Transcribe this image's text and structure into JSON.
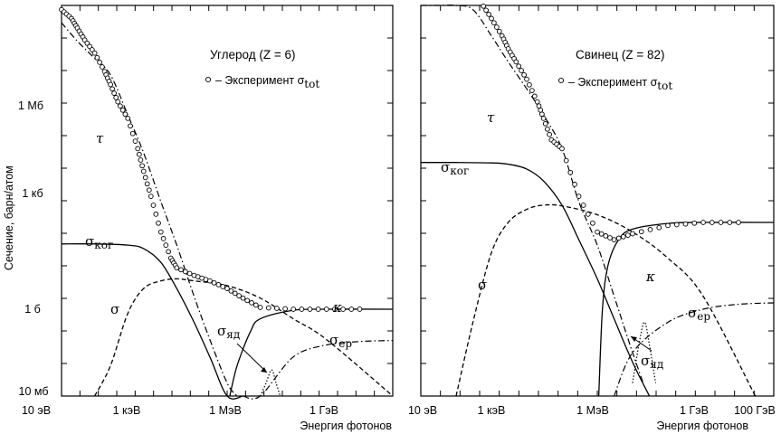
{
  "chart_data": [
    {
      "type": "line",
      "title": "Углерод (Z = 6)",
      "ylabel": "Сечение, барн/атом",
      "xlabel": "Энергия фотонов",
      "x_scale": "log",
      "y_scale": "log",
      "x_ticks": [
        "10 эВ",
        "1 кэВ",
        "1 МэВ",
        "1 ГэВ"
      ],
      "y_ticks": [
        "1 Мб",
        "1 кб",
        "1 б",
        "10 мб"
      ],
      "legend": "• – Эксперимент σ_tot",
      "labels": {
        "tau": "τ",
        "coh": "σ",
        "coh_sub": "ког",
        "incoh": "σ",
        "kappa": "κ",
        "nuc": "σ",
        "nuc_sub": "яд",
        "ep": "σ",
        "ep_sub": "ер"
      },
      "xlim_eV": [
        10,
        100000000000.0
      ],
      "ylim_barn": [
        0.01,
        10000000.0
      ],
      "series": [
        {
          "key": "tau",
          "style": "dashdot",
          "x": [
            10,
            30,
            100,
            300,
            1000,
            3000,
            10000,
            30000,
            100000.0,
            300000.0,
            1000000.0,
            2000000.0
          ],
          "y": [
            4000000.0,
            1500000.0,
            600000.0,
            250000.0,
            30000.0,
            4000,
            300,
            30,
            2,
            0.2,
            0.02,
            0.006
          ]
        },
        {
          "key": "coh",
          "style": "solid",
          "x": [
            10,
            100,
            1000,
            3000,
            10000,
            30000,
            100000.0,
            300000.0,
            1000000.0,
            3000000.0
          ],
          "y": [
            32,
            32,
            30,
            25,
            12,
            3,
            0.5,
            0.08,
            0.01,
            0.002
          ]
        },
        {
          "key": "incoh",
          "style": "dash",
          "x": [
            100,
            300,
            1000,
            3000,
            10000,
            30000,
            100000.0,
            1000000.0,
            10000000.0,
            100000000.0,
            1000000000.0,
            100000000000.0
          ],
          "y": [
            0.005,
            0.05,
            0.8,
            3,
            4.5,
            5,
            4.5,
            3.5,
            1.8,
            0.6,
            0.2,
            0.01
          ]
        },
        {
          "key": "kappa",
          "style": "solid",
          "x": [
            1200000.0,
            2000000.0,
            5000000.0,
            10000000.0,
            100000000.0,
            1000000000.0,
            100000000000.0
          ],
          "y": [
            0.01,
            0.05,
            0.3,
            0.6,
            0.95,
            1.0,
            1.0
          ]
        },
        {
          "key": "ep",
          "style": "dashdot",
          "x": [
            3000000.0,
            10000000.0,
            100000000.0,
            1000000000.0,
            10000000000.0,
            100000000000.0
          ],
          "y": [
            0.001,
            0.01,
            0.08,
            0.15,
            0.18,
            0.19
          ]
        },
        {
          "key": "nuc",
          "style": "dotted",
          "x": [
            10000000.0,
            15000000.0,
            22000000.0,
            30000000.0,
            40000000.0
          ],
          "y": [
            0.005,
            0.02,
            0.04,
            0.02,
            0.005
          ]
        }
      ],
      "experiment_x": [
        10,
        20,
        30,
        50,
        100,
        200,
        300,
        500,
        1000,
        2000,
        3000,
        5000,
        10000,
        20000,
        30000,
        100000.0,
        300000.0,
        1000000.0,
        3000000.0,
        10000000.0,
        100000000.0,
        1000000000.0,
        10000000000.0
      ],
      "experiment_y": [
        8000000.0,
        5000000.0,
        3000000.0,
        1600000.0,
        800000.0,
        300000.0,
        150000.0,
        60000.0,
        25000.0,
        5000,
        1500,
        400,
        60,
        15,
        9,
        6,
        4.5,
        3,
        1.8,
        1.1,
        1.0,
        1.0,
        1.0
      ]
    },
    {
      "type": "line",
      "title": "Свинец (Z = 82)",
      "xlabel": "Энергия фотонов",
      "x_scale": "log",
      "y_scale": "log",
      "x_ticks": [
        "10 эВ",
        "1 кэВ",
        "1 МэВ",
        "1 ГэВ",
        "100 ГэВ"
      ],
      "legend": "• – Эксперимент σ_tot",
      "labels": {
        "tau": "τ",
        "coh": "σ",
        "coh_sub": "ког",
        "incoh": "σ",
        "kappa": "κ",
        "nuc": "σ",
        "nuc_sub": "яд",
        "ep": "σ",
        "ep_sub": "ер"
      },
      "xlim_eV": [
        10,
        100000000000.0
      ],
      "ylim_barn": [
        0.01,
        10000000.0
      ],
      "series": [
        {
          "key": "tau",
          "style": "dashdot",
          "x": [
            10,
            30,
            100,
            300,
            1000,
            3000,
            10000,
            30000,
            100000.0,
            300000.0,
            1000000.0,
            3000000.0,
            10000000.0,
            20000000.0
          ],
          "y": [
            100000000.0,
            50000000.0,
            20000000.0,
            8000000.0,
            2000000.0,
            500000.0,
            120000.0,
            30000.0,
            5000,
            300,
            30,
            2,
            0.1,
            0.02
          ]
        },
        {
          "key": "coh",
          "style": "solid",
          "x": [
            10,
            100,
            1000,
            3000,
            10000,
            30000,
            100000.0,
            300000.0,
            1000000.0,
            3000000.0,
            10000000.0,
            30000000.0
          ],
          "y": [
            2400,
            2400,
            2350,
            2200,
            1700,
            900,
            250,
            40,
            5,
            0.6,
            0.06,
            0.01
          ]
        },
        {
          "key": "incoh",
          "style": "dash",
          "x": [
            100,
            300,
            1000,
            3000,
            10000,
            30000,
            100000.0,
            1000000.0,
            10000000.0,
            100000000.0,
            1000000000.0,
            30000000000.0
          ],
          "y": [
            0.01,
            0.5,
            20,
            100,
            200,
            250,
            240,
            150,
            60,
            15,
            2,
            0.01
          ]
        },
        {
          "key": "kappa",
          "style": "solid",
          "x": [
            1100000.0,
            1400000.0,
            2000000.0,
            4000000.0,
            10000000.0,
            100000000.0,
            1000000000.0,
            100000000000.0
          ],
          "y": [
            0.01,
            1,
            10,
            40,
            70,
            95,
            100,
            100
          ]
        },
        {
          "key": "ep",
          "style": "dashdot",
          "x": [
            3000000.0,
            10000000.0,
            100000000.0,
            1000000000.0,
            10000000000.0,
            100000000000.0
          ],
          "y": [
            0.01,
            0.1,
            0.5,
            1.0,
            1.3,
            1.4
          ]
        },
        {
          "key": "nuc",
          "style": "dotted",
          "x": [
            10000000.0,
            16000000.0,
            22000000.0,
            30000000.0,
            45000000.0
          ],
          "y": [
            0.02,
            0.2,
            0.5,
            0.15,
            0.02
          ]
        }
      ],
      "experiment_x": [
        70,
        100,
        150,
        200,
        300,
        500,
        1000,
        2000,
        3000,
        5000,
        10000,
        20000,
        30000,
        50000,
        100000.0,
        300000.0,
        1000000.0,
        3000000.0,
        10000000.0,
        100000000.0,
        1000000000.0,
        10000000000.0
      ],
      "experiment_y": [
        50000000.0,
        25000000.0,
        40000000.0,
        50000000.0,
        35000000.0,
        12000000.0,
        5000000.0,
        2000000.0,
        1000000.0,
        500000.0,
        200000.0,
        60000.0,
        25000.0,
        8000,
        5000,
        400,
        60,
        40,
        55,
        85,
        100,
        100
      ]
    }
  ]
}
